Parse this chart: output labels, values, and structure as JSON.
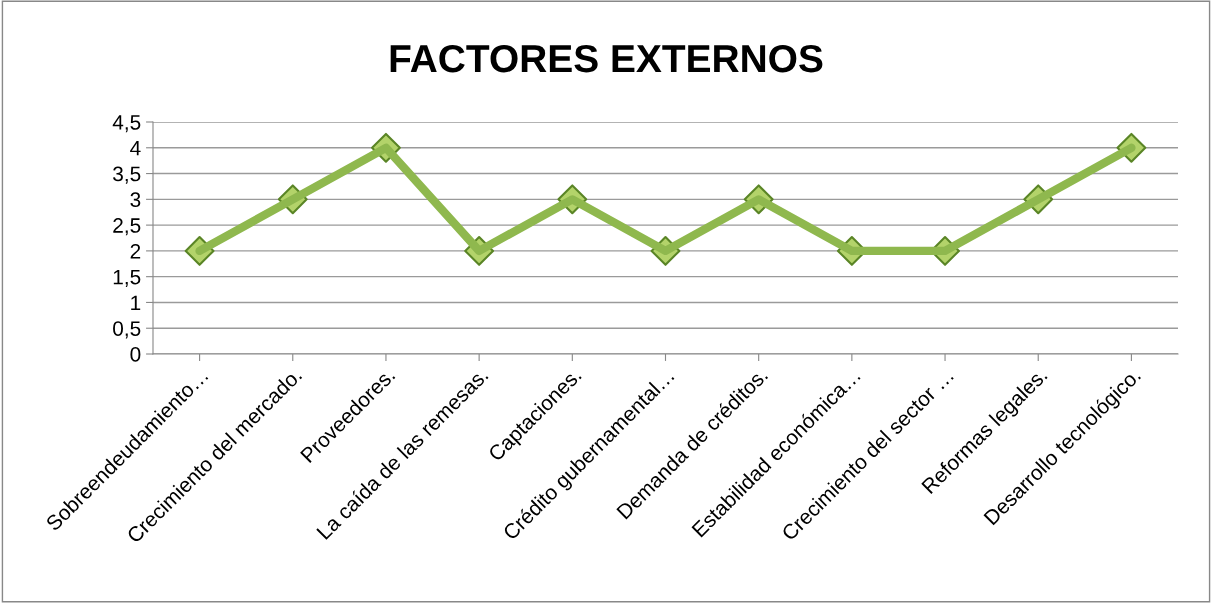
{
  "chart_data": {
    "type": "line",
    "title": "FACTORES EXTERNOS",
    "categories": [
      "Sobreendeudamiento…",
      "Crecimiento del mercado.",
      "Proveedores.",
      "La caída de las remesas.",
      "Captaciones.",
      "Crédito gubernamental…",
      "Demanda de créditos.",
      "Estabilidad económica…",
      "Crecimiento del sector …",
      "Reformas legales.",
      "Desarrollo tecnológico."
    ],
    "series": [
      {
        "color": "#8fb84e",
        "values": [
          2,
          3,
          4,
          2,
          3,
          2,
          3,
          2,
          2,
          3,
          4
        ]
      }
    ],
    "ylim": [
      0,
      4.5
    ],
    "yticks": [
      0,
      {
        "value": 0.5,
        "label": "0,5"
      },
      1,
      {
        "value": 1.5,
        "label": "1,5"
      },
      2,
      {
        "value": 2.5,
        "label": "2,5"
      },
      3,
      {
        "value": 3.5,
        "label": "3,5"
      },
      4,
      {
        "value": 4.5,
        "label": "4,5"
      }
    ],
    "grid": "y",
    "marker": "diamond",
    "line_style": "solid"
  }
}
